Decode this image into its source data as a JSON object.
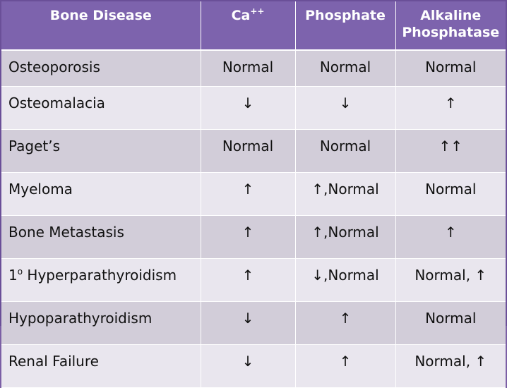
{
  "headers": {
    "col1": "Bone Disease",
    "col2": "Ca",
    "col2_sup": "++",
    "col3": "Phosphate",
    "col4_line1": "Alkaline",
    "col4_line2": "Phosphatase"
  },
  "rows": [
    {
      "disease": "Osteoporosis",
      "ca": "Normal",
      "phosphate": "Normal",
      "alp": "Normal"
    },
    {
      "disease": "Osteomalacia",
      "ca": "↓",
      "phosphate": "↓",
      "alp": "↑"
    },
    {
      "disease": "Paget’s",
      "ca": "Normal",
      "phosphate": "Normal",
      "alp": "↑↑"
    },
    {
      "disease": "Myeloma",
      "ca": "↑",
      "phosphate": "↑,Normal",
      "alp": "Normal"
    },
    {
      "disease": "Bone Metastasis",
      "ca": "↑",
      "phosphate": "↑,Normal",
      "alp": "↑"
    },
    {
      "disease_prefix": "1",
      "disease_sup": "o",
      "disease": " Hyperparathyroidism",
      "ca": "↑",
      "phosphate": "↓,Normal",
      "alp": "Normal, ↑"
    },
    {
      "disease": "Hypoparathyroidism",
      "ca": "↓",
      "phosphate": "↑",
      "alp": "Normal"
    },
    {
      "disease": "Renal Failure",
      "ca": "↓",
      "phosphate": "↑",
      "alp": "Normal, ↑"
    }
  ],
  "colors": {
    "header_bg": "#7d63ad",
    "row_dark": "#d2cdd9",
    "row_light": "#e9e6ee",
    "border": "#6a4f98"
  }
}
